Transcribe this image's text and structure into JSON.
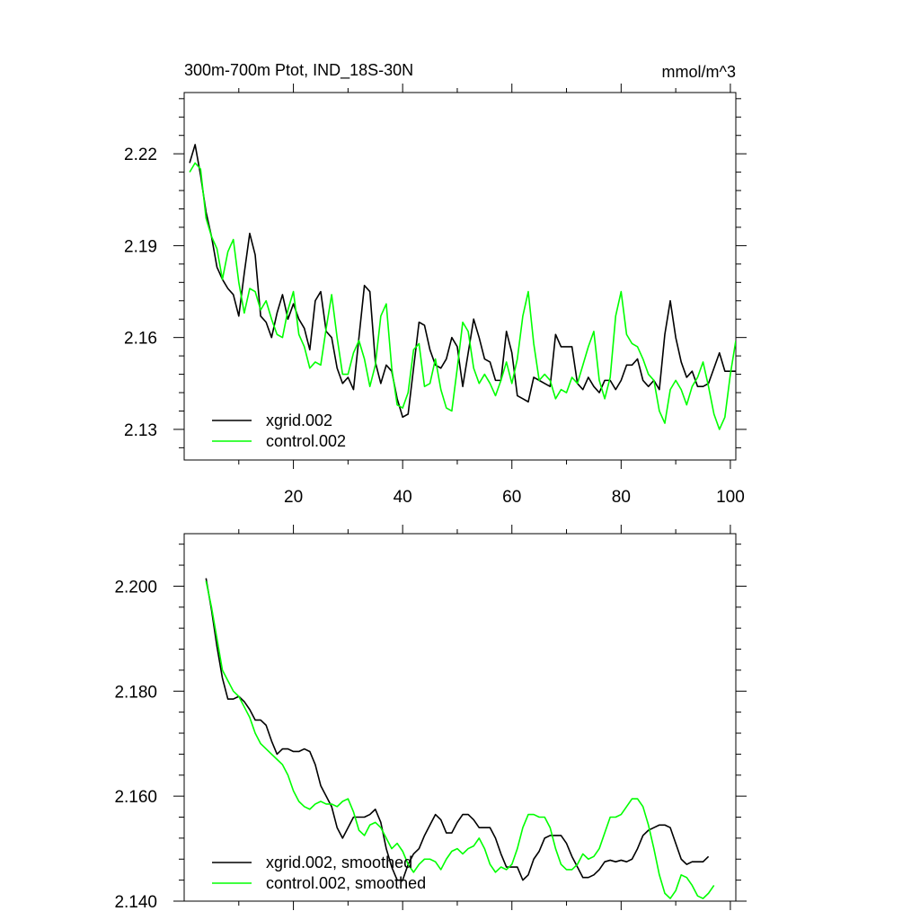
{
  "chart_data": [
    {
      "type": "line",
      "title": "300m-700m Ptot, IND_18S-30N",
      "units": "mmol/m^3",
      "xlabel": "",
      "ylabel": "",
      "xlim": [
        0,
        101
      ],
      "ylim": [
        2.12,
        2.24
      ],
      "xticks": [
        20,
        40,
        60,
        80,
        100
      ],
      "xtick_labels": [
        "20",
        "40",
        "60",
        "80",
        "100"
      ],
      "yticks": [
        2.13,
        2.16,
        2.19,
        2.22
      ],
      "ytick_labels": [
        "2.13",
        "2.16",
        "2.19",
        "2.22"
      ],
      "legend_position": "bottom-left",
      "series": [
        {
          "name": "xgrid.002",
          "color": "#000000",
          "x_start": 1,
          "values": [
            2.217,
            2.223,
            2.213,
            2.201,
            2.193,
            2.183,
            2.179,
            2.176,
            2.174,
            2.167,
            2.181,
            2.194,
            2.187,
            2.167,
            2.165,
            2.16,
            2.168,
            2.174,
            2.166,
            2.171,
            2.166,
            2.163,
            2.156,
            2.172,
            2.175,
            2.162,
            2.16,
            2.15,
            2.145,
            2.147,
            2.143,
            2.16,
            2.177,
            2.175,
            2.152,
            2.145,
            2.151,
            2.149,
            2.14,
            2.134,
            2.135,
            2.15,
            2.165,
            2.164,
            2.156,
            2.151,
            2.15,
            2.153,
            2.16,
            2.157,
            2.144,
            2.155,
            2.166,
            2.16,
            2.153,
            2.152,
            2.146,
            2.146,
            2.162,
            2.155,
            2.141,
            2.14,
            2.139,
            2.147,
            2.146,
            2.145,
            2.144,
            2.161,
            2.157,
            2.157,
            2.157,
            2.145,
            2.143,
            2.147,
            2.144,
            2.142,
            2.146,
            2.146,
            2.143,
            2.146,
            2.151,
            2.151,
            2.153,
            2.146,
            2.144,
            2.146,
            2.143,
            2.161,
            2.172,
            2.16,
            2.152,
            2.147,
            2.149,
            2.144,
            2.144,
            2.145,
            2.15,
            2.155,
            2.149,
            2.149,
            2.149
          ]
        },
        {
          "name": "control.002",
          "color": "#00ff00",
          "x_start": 1,
          "values": [
            2.214,
            2.217,
            2.215,
            2.199,
            2.193,
            2.189,
            2.179,
            2.188,
            2.192,
            2.178,
            2.168,
            2.176,
            2.175,
            2.169,
            2.172,
            2.166,
            2.161,
            2.16,
            2.169,
            2.175,
            2.161,
            2.157,
            2.15,
            2.152,
            2.151,
            2.163,
            2.174,
            2.16,
            2.148,
            2.148,
            2.155,
            2.159,
            2.153,
            2.144,
            2.151,
            2.167,
            2.171,
            2.15,
            2.138,
            2.137,
            2.142,
            2.156,
            2.158,
            2.144,
            2.145,
            2.153,
            2.143,
            2.137,
            2.136,
            2.15,
            2.165,
            2.162,
            2.15,
            2.145,
            2.148,
            2.145,
            2.141,
            2.146,
            2.152,
            2.145,
            2.153,
            2.167,
            2.175,
            2.158,
            2.146,
            2.148,
            2.146,
            2.14,
            2.143,
            2.142,
            2.147,
            2.145,
            2.151,
            2.157,
            2.162,
            2.146,
            2.14,
            2.147,
            2.167,
            2.175,
            2.161,
            2.158,
            2.157,
            2.153,
            2.148,
            2.146,
            2.136,
            2.132,
            2.143,
            2.146,
            2.143,
            2.138,
            2.144,
            2.147,
            2.152,
            2.144,
            2.135,
            2.13,
            2.134,
            2.148,
            2.159
          ]
        }
      ]
    },
    {
      "type": "line",
      "title": "",
      "xlabel": "",
      "ylabel": "",
      "xlim": [
        0,
        101
      ],
      "ylim": [
        2.14,
        2.21
      ],
      "xticks": [
        20,
        40,
        60,
        80,
        100
      ],
      "yticks": [
        2.14,
        2.16,
        2.18,
        2.2
      ],
      "ytick_labels": [
        "2.140",
        "2.160",
        "2.180",
        "2.200"
      ],
      "legend_position": "bottom-left",
      "series": [
        {
          "name": "xgrid.002, smoothed",
          "color": "#000000",
          "x_start": 4,
          "values": [
            2.2015,
            2.1955,
            2.1885,
            2.1825,
            2.1785,
            2.1785,
            2.179,
            2.178,
            2.1765,
            2.1745,
            2.1745,
            2.1735,
            2.1705,
            2.168,
            2.169,
            2.169,
            2.1685,
            2.1685,
            2.169,
            2.1685,
            2.166,
            2.162,
            2.16,
            2.158,
            2.154,
            2.152,
            2.154,
            2.156,
            2.156,
            2.156,
            2.1565,
            2.1575,
            2.155,
            2.15,
            2.1465,
            2.144,
            2.144,
            2.147,
            2.149,
            2.15,
            2.1525,
            2.1545,
            2.1565,
            2.1555,
            2.153,
            2.153,
            2.155,
            2.1565,
            2.1565,
            2.1555,
            2.154,
            2.154,
            2.154,
            2.152,
            2.149,
            2.1465,
            2.1465,
            2.1465,
            2.144,
            2.145,
            2.148,
            2.1495,
            2.152,
            2.1525,
            2.1525,
            2.1525,
            2.151,
            2.1485,
            2.1465,
            2.1445,
            2.1445,
            2.145,
            2.146,
            2.1475,
            2.1478,
            2.1475,
            2.1478,
            2.1475,
            2.148,
            2.15,
            2.1525,
            2.1535,
            2.154,
            2.1545,
            2.1545,
            2.154,
            2.151,
            2.148,
            2.147,
            2.1475,
            2.1475,
            2.1475,
            2.1485
          ]
        },
        {
          "name": "control.002, smoothed",
          "color": "#00ff00",
          "x_start": 4,
          "values": [
            2.201,
            2.196,
            2.19,
            2.184,
            2.182,
            2.18,
            2.179,
            2.177,
            2.175,
            2.172,
            2.17,
            2.169,
            2.168,
            2.167,
            2.166,
            2.164,
            2.161,
            2.159,
            2.158,
            2.1575,
            2.1585,
            2.159,
            2.1585,
            2.1585,
            2.158,
            2.159,
            2.1595,
            2.157,
            2.1535,
            2.1525,
            2.1545,
            2.155,
            2.154,
            2.152,
            2.15,
            2.151,
            2.1495,
            2.147,
            2.1455,
            2.147,
            2.148,
            2.148,
            2.1475,
            2.146,
            2.148,
            2.1495,
            2.15,
            2.149,
            2.15,
            2.1505,
            2.152,
            2.15,
            2.147,
            2.1455,
            2.1465,
            2.146,
            2.147,
            2.15,
            2.154,
            2.1565,
            2.1565,
            2.156,
            2.156,
            2.154,
            2.15,
            2.147,
            2.146,
            2.146,
            2.147,
            2.149,
            2.148,
            2.1485,
            2.15,
            2.153,
            2.156,
            2.156,
            2.1565,
            2.158,
            2.1595,
            2.1595,
            2.158,
            2.1545,
            2.15,
            2.145,
            2.1415,
            2.1405,
            2.142,
            2.145,
            2.1445,
            2.143,
            2.141,
            2.1405,
            2.1415,
            2.143
          ]
        }
      ]
    }
  ]
}
